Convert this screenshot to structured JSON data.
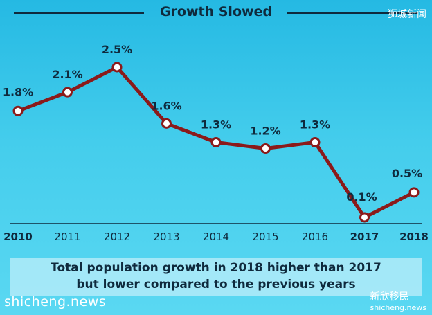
{
  "chart_data": {
    "type": "line",
    "title": "Growth Slowed",
    "categories": [
      "2010",
      "2011",
      "2012",
      "2013",
      "2014",
      "2015",
      "2016",
      "2017",
      "2018"
    ],
    "values": [
      1.8,
      2.1,
      2.5,
      1.6,
      1.3,
      1.2,
      1.3,
      0.1,
      0.5
    ],
    "data_labels": [
      "1.8%",
      "2.1%",
      "2.5%",
      "1.6%",
      "1.3%",
      "1.2%",
      "1.3%",
      "0.1%",
      "0.5%"
    ],
    "xlabel": "",
    "ylabel": "",
    "ylim": [
      0,
      2.7
    ],
    "grid": false,
    "line_color": "#8b1a1a"
  },
  "caption": {
    "line1": "Total population growth in 2018 higher than 2017",
    "line2": "but lower compared to the previous years"
  },
  "watermarks": {
    "top_right": "狮城新闻",
    "bottom_left": "shicheng.news",
    "bottom_right_brand": "新欣移民",
    "bottom_right_site": "shicheng.news"
  }
}
